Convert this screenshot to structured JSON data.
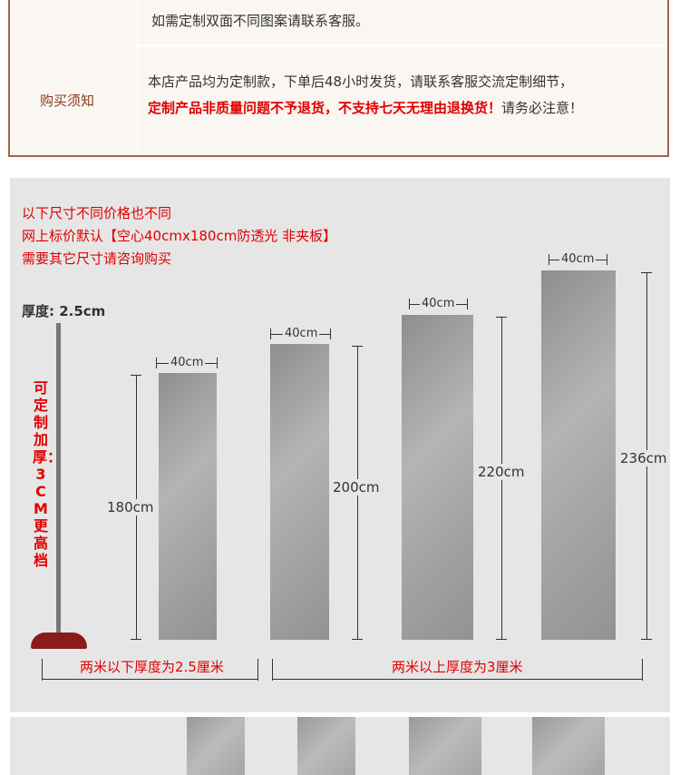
{
  "notice": {
    "line1": "如需定制双面不同图案请联系客服。",
    "label": "购买须知",
    "line2": "本店产品均为定制款，下单后48小时发货，请联系客服交流定制细节，",
    "line3_red": "定制产品非质量问题不予退货，不支持七天无理由退换货！",
    "line3_plain": "请务必注意！"
  },
  "sizes": {
    "note1": "以下尺寸不同价格也不同",
    "note2": "网上标价默认【空心40cmx180cm防透光 非夹板】",
    "note3": "需要其它尺寸请咨询购买",
    "thickness_label": "厚度: 2.5cm",
    "custom_thickness": "可定制加厚：3CM 更高档",
    "width": "40cm",
    "heights": [
      "180cm",
      "200cm",
      "220cm",
      "236cm"
    ],
    "under_two": "两米以下厚度为2.5厘米",
    "over_two": "两米以上厚度为3厘米"
  },
  "colors": {
    "accent_red": "#e00000",
    "frame_brown": "#a7624c",
    "panel_bg": "#e6e6e6"
  }
}
